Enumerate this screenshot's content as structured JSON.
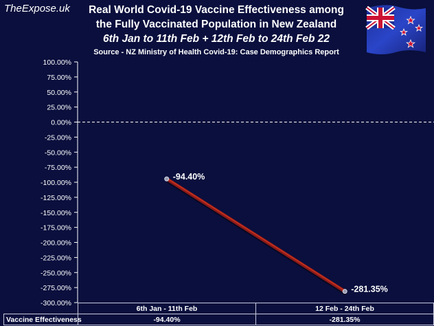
{
  "brand": "TheExpose.uk",
  "title_line1": "Real World Covid-19 Vaccine Effectiveness among",
  "title_line2": "the Fully Vaccinated Population in New Zealand",
  "title_line3": "6th Jan to 11th Feb + 12th Feb to 24th Feb 22",
  "source": "Source - NZ Ministry of Health Covid-19: Case Demographics Report",
  "flag_icon": "new-zealand-flag-icon",
  "colors": {
    "background": "#0a0f3d",
    "line": "#8b1a1a",
    "line_highlight": "#c8341e",
    "grid": "#2a2f66",
    "axis": "#ffffff"
  },
  "table": {
    "row_header": "Vaccine Effectiveness",
    "columns": [
      "6th Jan - 11th Feb",
      "12 Feb - 24th Feb"
    ],
    "values": [
      "-94.40%",
      "-281.35%"
    ]
  },
  "chart_data": {
    "type": "line",
    "categories": [
      "6th Jan - 11th Feb",
      "12 Feb - 24th Feb"
    ],
    "series": [
      {
        "name": "Vaccine Effectiveness",
        "values": [
          -94.4,
          -281.35
        ],
        "labels": [
          "-94.40%",
          "-281.35%"
        ]
      }
    ],
    "ylim": [
      -300,
      100
    ],
    "ytick_step": 25,
    "yticks": [
      "100.00%",
      "75.00%",
      "50.00%",
      "25.00%",
      "0.00%",
      "-25.00%",
      "-50.00%",
      "-75.00%",
      "-100.00%",
      "-125.00%",
      "-150.00%",
      "-175.00%",
      "-200.00%",
      "-225.00%",
      "-250.00%",
      "-275.00%",
      "-300.00%"
    ],
    "zero_line": "dashed",
    "grid": false,
    "legend": "none"
  }
}
